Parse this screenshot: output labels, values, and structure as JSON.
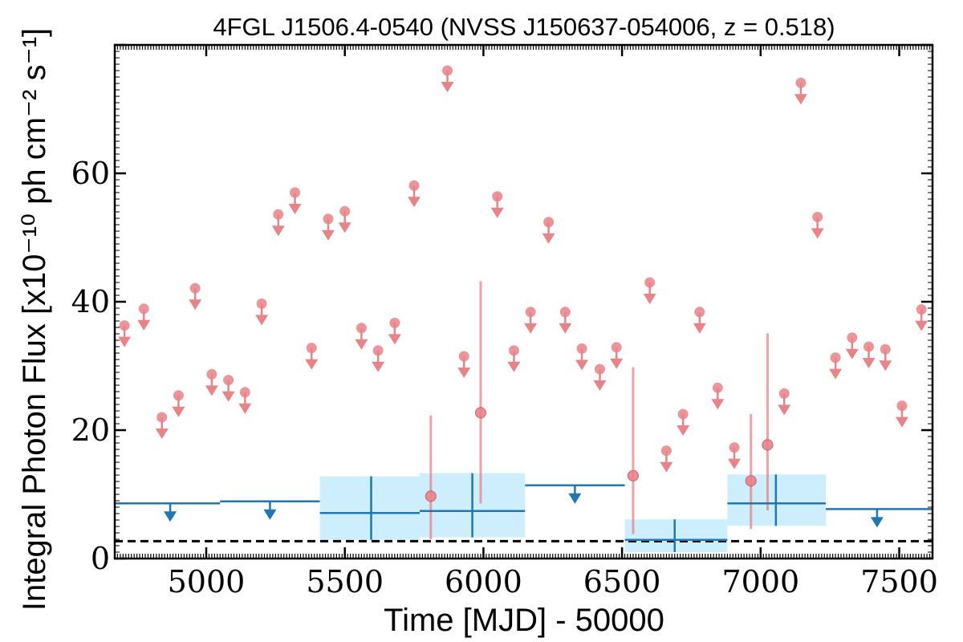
{
  "chart_data": {
    "type": "scatter",
    "title": "4FGL J1506.4-0540 (NVSS J150637-054006, z = 0.518)",
    "xlabel": "Time [MJD] - 50000",
    "ylabel": "Integral Photon Flux [x10⁻¹⁰ ph cm⁻² s⁻¹]",
    "xlim": [
      4670,
      7620
    ],
    "ylim": [
      0,
      80
    ],
    "x_ticks": [
      5000,
      5500,
      6000,
      6500,
      7000,
      7500
    ],
    "y_ticks": [
      0,
      20,
      40,
      60
    ],
    "grid": false,
    "baseline": 2.7,
    "colors": {
      "short_bins": "#e8838a",
      "long_bins": "#1f77b4",
      "long_bins_band": "#cdeefc",
      "baseline": "#000000"
    },
    "short_bins_upper_limits": [
      {
        "x": 4705,
        "y": 36.3
      },
      {
        "x": 4775,
        "y": 38.9
      },
      {
        "x": 4840,
        "y": 22.0
      },
      {
        "x": 4900,
        "y": 25.4
      },
      {
        "x": 4960,
        "y": 42.1
      },
      {
        "x": 5020,
        "y": 28.7
      },
      {
        "x": 5080,
        "y": 27.8
      },
      {
        "x": 5140,
        "y": 25.9
      },
      {
        "x": 5200,
        "y": 39.7
      },
      {
        "x": 5260,
        "y": 53.6
      },
      {
        "x": 5320,
        "y": 57.0
      },
      {
        "x": 5380,
        "y": 32.8
      },
      {
        "x": 5440,
        "y": 52.9
      },
      {
        "x": 5500,
        "y": 54.1
      },
      {
        "x": 5560,
        "y": 35.9
      },
      {
        "x": 5620,
        "y": 32.4
      },
      {
        "x": 5680,
        "y": 36.7
      },
      {
        "x": 5750,
        "y": 58.1
      },
      {
        "x": 5870,
        "y": 76.0
      },
      {
        "x": 5930,
        "y": 31.5
      },
      {
        "x": 6050,
        "y": 56.4
      },
      {
        "x": 6110,
        "y": 32.4
      },
      {
        "x": 6170,
        "y": 38.4
      },
      {
        "x": 6235,
        "y": 52.4
      },
      {
        "x": 6295,
        "y": 38.4
      },
      {
        "x": 6355,
        "y": 32.7
      },
      {
        "x": 6420,
        "y": 29.5
      },
      {
        "x": 6480,
        "y": 32.9
      },
      {
        "x": 6600,
        "y": 43.0
      },
      {
        "x": 6660,
        "y": 16.8
      },
      {
        "x": 6720,
        "y": 22.5
      },
      {
        "x": 6780,
        "y": 38.4
      },
      {
        "x": 6845,
        "y": 26.6
      },
      {
        "x": 6905,
        "y": 17.3
      },
      {
        "x": 7085,
        "y": 25.7
      },
      {
        "x": 7145,
        "y": 74.1
      },
      {
        "x": 7205,
        "y": 53.2
      },
      {
        "x": 7270,
        "y": 31.3
      },
      {
        "x": 7330,
        "y": 34.4
      },
      {
        "x": 7390,
        "y": 33.0
      },
      {
        "x": 7450,
        "y": 32.6
      },
      {
        "x": 7510,
        "y": 23.8
      },
      {
        "x": 7580,
        "y": 38.8
      }
    ],
    "short_bins_detections": [
      {
        "x": 5810,
        "y": 9.7,
        "ylo": 3.0,
        "yhi": 22.3
      },
      {
        "x": 5990,
        "y": 22.7,
        "ylo": 8.6,
        "yhi": 43.2
      },
      {
        "x": 6540,
        "y": 12.9,
        "ylo": 3.8,
        "yhi": 29.8
      },
      {
        "x": 6965,
        "y": 12.1,
        "ylo": 4.6,
        "yhi": 22.5
      },
      {
        "x": 7025,
        "y": 17.7,
        "ylo": 7.5,
        "yhi": 35.1
      }
    ],
    "long_bins_upper_limits": [
      {
        "x0": 4670,
        "x1": 5050,
        "y": 8.6,
        "xmark": 4870
      },
      {
        "x0": 5050,
        "x1": 5410,
        "y": 8.9,
        "xmark": 5230
      },
      {
        "x0": 6150,
        "x1": 6510,
        "y": 11.4,
        "xmark": 6330
      },
      {
        "x0": 7235,
        "x1": 7620,
        "y": 7.7,
        "xmark": 7420
      }
    ],
    "long_bins_detections": [
      {
        "x": 5595,
        "x0": 5410,
        "x1": 5770,
        "y": 7.1,
        "ylo": 2.9,
        "yhi": 12.8
      },
      {
        "x": 5960,
        "x1": 6150,
        "x0": 5770,
        "y": 7.4,
        "ylo": 3.3,
        "yhi": 13.3
      },
      {
        "x": 6690,
        "x0": 6510,
        "x1": 6880,
        "y": 2.9,
        "ylo": 1.0,
        "yhi": 6.1
      },
      {
        "x": 7055,
        "x0": 6880,
        "x1": 7235,
        "y": 8.6,
        "ylo": 5.1,
        "yhi": 13.1
      }
    ]
  }
}
